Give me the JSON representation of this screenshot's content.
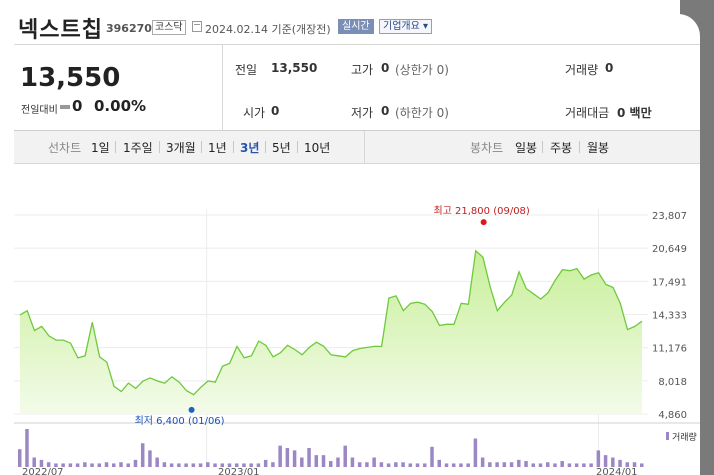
{
  "stock": {
    "name": "넥스트칩",
    "code": "396270",
    "market": "코스닥",
    "date": "2024.02.14  기준(개장전)",
    "realtime_label": "실시간",
    "company_info_label": "기업개요 ▾"
  },
  "price": {
    "current": "13,550",
    "change_label": "전일대비",
    "change_value": "0",
    "change_pct": "0.00%"
  },
  "stats": {
    "prev_label": "전일",
    "prev_value": "13,550",
    "high_label": "고가",
    "high_value": "0",
    "high_limit": "(상한가 0)",
    "volume_label": "거래량",
    "volume_value": "0",
    "open_label": "시가",
    "open_value": "0",
    "low_label": "저가",
    "low_value": "0",
    "low_limit": "(하한가 0)",
    "amount_label": "거래대금",
    "amount_value": "0 백만"
  },
  "periods": {
    "label": "선차트",
    "items": [
      "1일",
      "1주일",
      "3개월",
      "1년",
      "3년",
      "5년",
      "10년"
    ],
    "selected": "3년",
    "candle_label": "봉차트",
    "candle_items": [
      "일봉",
      "주봉",
      "월봉"
    ]
  },
  "colors": {
    "area_fill_top": "#c8ef9a",
    "area_line": "#6fc93c",
    "high_marker": "#e01818",
    "low_marker": "#1a62c9",
    "volume_bar": "#9b87c4",
    "selected_period": "#2b53a8"
  },
  "chart_data": {
    "type": "area",
    "ylim": [
      4860,
      23807
    ],
    "yticks": [
      "23,807",
      "20,649",
      "17,491",
      "14,333",
      "11,176",
      "8,018",
      "4,860"
    ],
    "xticks": [
      "2022/07",
      "2023/01",
      "2024/01"
    ],
    "high_annotation": "최고 21,800 (09/08)",
    "low_annotation": "최저 6,400 (01/06)",
    "volume_label": "거래량",
    "values": [
      14300,
      14700,
      12800,
      13200,
      12300,
      11900,
      11900,
      11600,
      10200,
      10400,
      13600,
      10300,
      9800,
      7500,
      7000,
      7800,
      7300,
      8000,
      8300,
      8000,
      7800,
      8400,
      7900,
      7100,
      6700,
      7400,
      8000,
      7900,
      9400,
      9700,
      11300,
      10200,
      10400,
      11800,
      11400,
      10300,
      10700,
      11400,
      11000,
      10500,
      11200,
      11700,
      11300,
      10500,
      10400,
      10300,
      10900,
      11100,
      11200,
      11300,
      11300,
      15900,
      16100,
      14700,
      15400,
      15500,
      15300,
      14600,
      13300,
      13400,
      13400,
      15400,
      15300,
      20400,
      19800,
      17000,
      14700,
      15500,
      16200,
      18400,
      16800,
      16300,
      15800,
      16400,
      17600,
      18600,
      18500,
      18700,
      17700,
      18100,
      18300,
      17200,
      16900,
      15400,
      12900,
      13200,
      13700
    ],
    "volume": [
      15,
      32,
      8,
      6,
      4,
      3,
      3,
      3,
      3,
      4,
      3,
      3,
      4,
      3,
      4,
      3,
      6,
      20,
      14,
      8,
      4,
      3,
      3,
      3,
      3,
      3,
      4,
      3,
      3,
      3,
      3,
      3,
      3,
      3,
      6,
      4,
      18,
      16,
      14,
      8,
      16,
      10,
      10,
      5,
      8,
      18,
      8,
      4,
      4,
      8,
      4,
      3,
      4,
      4,
      3,
      3,
      3,
      17,
      6,
      3,
      3,
      3,
      3,
      24,
      8,
      4,
      4,
      4,
      4,
      6,
      5,
      3,
      3,
      4,
      3,
      5,
      3,
      3,
      3,
      3,
      14,
      10,
      8,
      6,
      4,
      4,
      3
    ]
  }
}
